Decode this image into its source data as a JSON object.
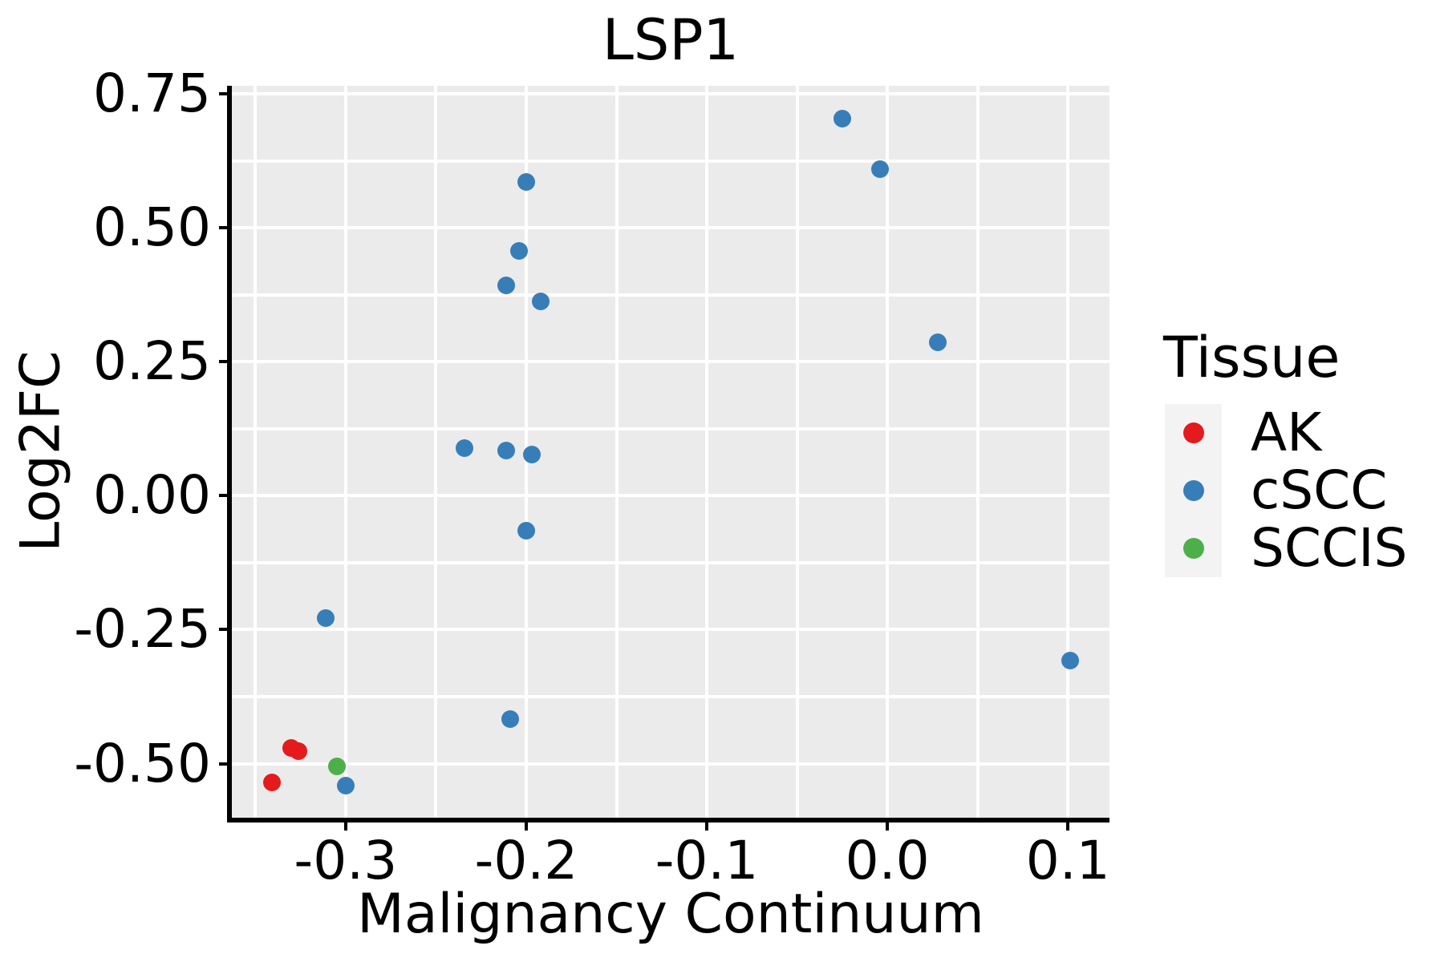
{
  "figure": {
    "title": "LSP1",
    "x_axis": {
      "label": "Malignancy Continuum",
      "ticks": [
        {
          "value": -0.3,
          "label": "-0.3"
        },
        {
          "value": -0.2,
          "label": "-0.2"
        },
        {
          "value": -0.1,
          "label": "-0.1"
        },
        {
          "value": 0.0,
          "label": "0.0"
        },
        {
          "value": 0.1,
          "label": "0.1"
        }
      ]
    },
    "y_axis": {
      "label": "Log2FC",
      "ticks": [
        {
          "value": 0.75,
          "label": "0.75"
        },
        {
          "value": 0.5,
          "label": "0.50"
        },
        {
          "value": 0.25,
          "label": "0.25"
        },
        {
          "value": 0.0,
          "label": "0.00"
        },
        {
          "value": -0.25,
          "label": "-0.25"
        },
        {
          "value": -0.5,
          "label": "-0.50"
        }
      ]
    }
  },
  "legend": {
    "title": "Tissue",
    "entries": [
      {
        "label": "AK",
        "color": "#E41A1C"
      },
      {
        "label": "cSCC",
        "color": "#377EB8"
      },
      {
        "label": "SCCIS",
        "color": "#4DAF4A"
      }
    ]
  },
  "chart_data": {
    "type": "scatter",
    "title": "LSP1",
    "xlabel": "Malignancy Continuum",
    "ylabel": "Log2FC",
    "xlim": [
      -0.363,
      0.123
    ],
    "ylim": [
      -0.601,
      0.765
    ],
    "x_major_ticks": [
      -0.3,
      -0.2,
      -0.1,
      0.0,
      0.1
    ],
    "y_major_ticks": [
      0.75,
      0.5,
      0.25,
      0.0,
      -0.25,
      -0.5
    ],
    "x_gridlines": [
      -0.35,
      -0.3,
      -0.25,
      -0.2,
      -0.15,
      -0.1,
      -0.05,
      0.0,
      0.05,
      0.1
    ],
    "y_gridlines": [
      -0.5,
      -0.375,
      -0.25,
      -0.125,
      0.0,
      0.125,
      0.25,
      0.375,
      0.5,
      0.625,
      0.75
    ],
    "grid": "white gridlines on gray panel",
    "legend_position": "right",
    "series": [
      {
        "name": "AK",
        "color": "#E41A1C",
        "points": [
          [
            -0.33,
            -0.471
          ],
          [
            -0.326,
            -0.477
          ],
          [
            -0.341,
            -0.535
          ]
        ]
      },
      {
        "name": "cSCC",
        "color": "#377EB8",
        "points": [
          [
            -0.025,
            0.703
          ],
          [
            -0.004,
            0.61
          ],
          [
            -0.2,
            0.585
          ],
          [
            -0.204,
            0.457
          ],
          [
            -0.211,
            0.393
          ],
          [
            -0.192,
            0.362
          ],
          [
            0.028,
            0.287
          ],
          [
            -0.234,
            0.089
          ],
          [
            -0.211,
            0.085
          ],
          [
            -0.197,
            0.077
          ],
          [
            -0.2,
            -0.065
          ],
          [
            -0.311,
            -0.228
          ],
          [
            -0.209,
            -0.417
          ],
          [
            0.101,
            -0.308
          ],
          [
            -0.3,
            -0.541
          ]
        ]
      },
      {
        "name": "SCCIS",
        "color": "#4DAF4A",
        "points": [
          [
            -0.305,
            -0.505
          ]
        ]
      }
    ]
  },
  "colors": {
    "page_bg": "#FFFFFF",
    "panel_bg": "#EBEBEB",
    "grid": "#FFFFFF",
    "axis": "#000000",
    "text": "#000000",
    "legend_key_bg": "#F3F3F3"
  }
}
